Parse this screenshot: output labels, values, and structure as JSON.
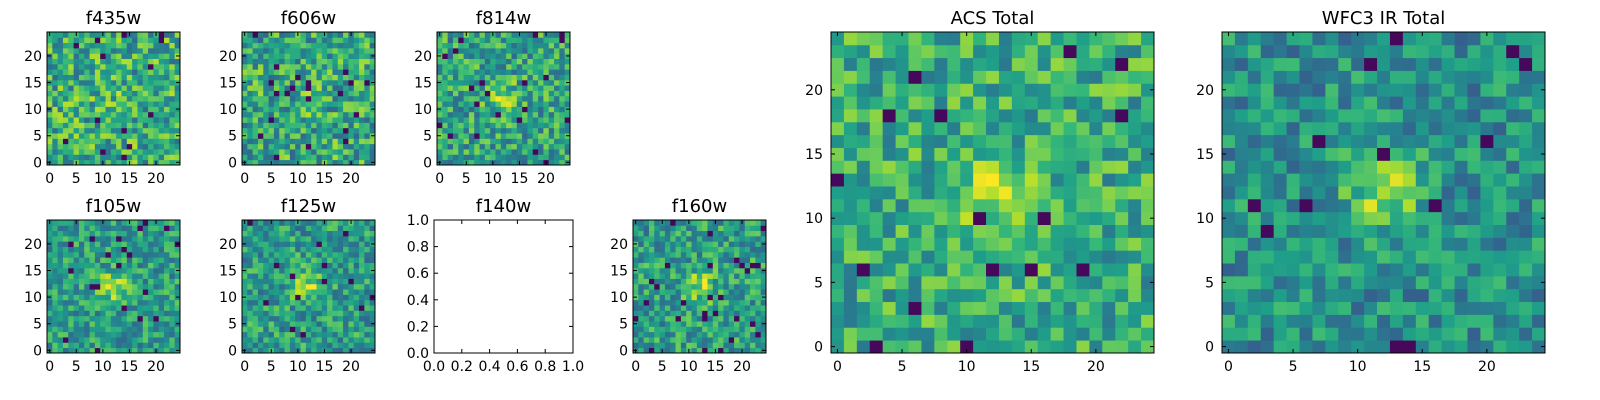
{
  "chart_data": [
    {
      "type": "heatmap",
      "title": "f435w",
      "xticks": [
        "0",
        "5",
        "10",
        "15",
        "20"
      ],
      "yticks": [
        "0",
        "5",
        "10",
        "15",
        "20"
      ],
      "xlim": [
        -0.5,
        24.5
      ],
      "ylim": [
        -0.5,
        24.5
      ],
      "grid": false,
      "colormap": "viridis",
      "source": "f435w"
    },
    {
      "type": "heatmap",
      "title": "f606w",
      "xticks": [
        "0",
        "5",
        "10",
        "15",
        "20"
      ],
      "yticks": [
        "0",
        "5",
        "10",
        "15",
        "20"
      ],
      "xlim": [
        -0.5,
        24.5
      ],
      "ylim": [
        -0.5,
        24.5
      ],
      "grid": false,
      "colormap": "viridis",
      "source": "f606w"
    },
    {
      "type": "heatmap",
      "title": "f814w",
      "xticks": [
        "0",
        "5",
        "10",
        "15",
        "20"
      ],
      "yticks": [
        "0",
        "5",
        "10",
        "15",
        "20"
      ],
      "xlim": [
        -0.5,
        24.5
      ],
      "ylim": [
        -0.5,
        24.5
      ],
      "grid": false,
      "colormap": "viridis",
      "source": "f814w"
    },
    {
      "type": "heatmap",
      "title": "f105w",
      "xticks": [
        "0",
        "5",
        "10",
        "15",
        "20"
      ],
      "yticks": [
        "0",
        "5",
        "10",
        "15",
        "20"
      ],
      "xlim": [
        -0.5,
        24.5
      ],
      "ylim": [
        -0.5,
        24.5
      ],
      "grid": false,
      "colormap": "viridis",
      "source": "f105w"
    },
    {
      "type": "heatmap",
      "title": "f125w",
      "xticks": [
        "0",
        "5",
        "10",
        "15",
        "20"
      ],
      "yticks": [
        "0",
        "5",
        "10",
        "15",
        "20"
      ],
      "xlim": [
        -0.5,
        24.5
      ],
      "ylim": [
        -0.5,
        24.5
      ],
      "grid": false,
      "colormap": "viridis",
      "source": "f125w"
    },
    {
      "type": "empty",
      "title": "f140w",
      "xticks": [
        "0.0",
        "0.2",
        "0.4",
        "0.6",
        "0.8",
        "1.0"
      ],
      "yticks": [
        "0.0",
        "0.2",
        "0.4",
        "0.6",
        "0.8",
        "1.0"
      ],
      "xlim": [
        0,
        1
      ],
      "ylim": [
        0,
        1
      ],
      "grid": false
    },
    {
      "type": "heatmap",
      "title": "f160w",
      "xticks": [
        "0",
        "5",
        "10",
        "15",
        "20"
      ],
      "yticks": [
        "0",
        "5",
        "10",
        "15",
        "20"
      ],
      "xlim": [
        -0.5,
        24.5
      ],
      "ylim": [
        -0.5,
        24.5
      ],
      "grid": false,
      "colormap": "viridis",
      "source": "f160w"
    },
    {
      "type": "heatmap",
      "title": "ACS Total",
      "xticks": [
        "0",
        "5",
        "10",
        "15",
        "20"
      ],
      "yticks": [
        "0",
        "5",
        "10",
        "15",
        "20"
      ],
      "xlim": [
        -0.5,
        24.5
      ],
      "ylim": [
        -0.5,
        24.5
      ],
      "grid": false,
      "colormap": "viridis",
      "source": "acs"
    },
    {
      "type": "heatmap",
      "title": "WFC3 IR Total",
      "xticks": [
        "0",
        "5",
        "10",
        "15",
        "20"
      ],
      "yticks": [
        "0",
        "5",
        "10",
        "15",
        "20"
      ],
      "xlim": [
        -0.5,
        24.5
      ],
      "ylim": [
        -0.5,
        24.5
      ],
      "grid": false,
      "colormap": "viridis",
      "source": "ir"
    }
  ]
}
